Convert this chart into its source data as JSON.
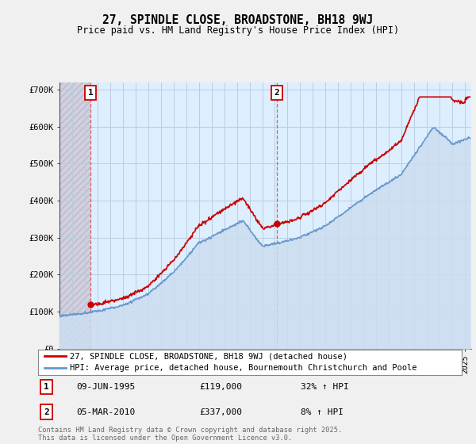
{
  "title1": "27, SPINDLE CLOSE, BROADSTONE, BH18 9WJ",
  "title2": "Price paid vs. HM Land Registry's House Price Index (HPI)",
  "ylabel_ticks": [
    "£0",
    "£100K",
    "£200K",
    "£300K",
    "£400K",
    "£500K",
    "£600K",
    "£700K"
  ],
  "ytick_vals": [
    0,
    100000,
    200000,
    300000,
    400000,
    500000,
    600000,
    700000
  ],
  "ylim": [
    0,
    720000
  ],
  "xlim_start": 1993.0,
  "xlim_end": 2025.5,
  "legend_line1": "27, SPINDLE CLOSE, BROADSTONE, BH18 9WJ (detached house)",
  "legend_line2": "HPI: Average price, detached house, Bournemouth Christchurch and Poole",
  "point1_date": "09-JUN-1995",
  "point1_price": 119000,
  "point1_price_str": "£119,000",
  "point1_hpi_pct": "32% ↑ HPI",
  "point1_x": 1995.44,
  "point1_y": 119000,
  "point2_date": "05-MAR-2010",
  "point2_price": 337000,
  "point2_price_str": "£337,000",
  "point2_hpi_pct": "8% ↑ HPI",
  "point2_x": 2010.17,
  "point2_y": 337000,
  "sale_color": "#cc0000",
  "hpi_line_color": "#6699cc",
  "hpi_fill_color": "#ccddf0",
  "annotation_box_color": "#cc0000",
  "copyright_text": "Contains HM Land Registry data © Crown copyright and database right 2025.\nThis data is licensed under the Open Government Licence v3.0.",
  "background_color": "#f0f0f0",
  "plot_bg_color": "#ddeeff",
  "grid_color": "#bbccdd",
  "vline_color": "#dd4444",
  "hatch_zone_end": 1995.44,
  "hatch_color": "#bbbbcc",
  "hatch_bg": "#d0d0e0"
}
